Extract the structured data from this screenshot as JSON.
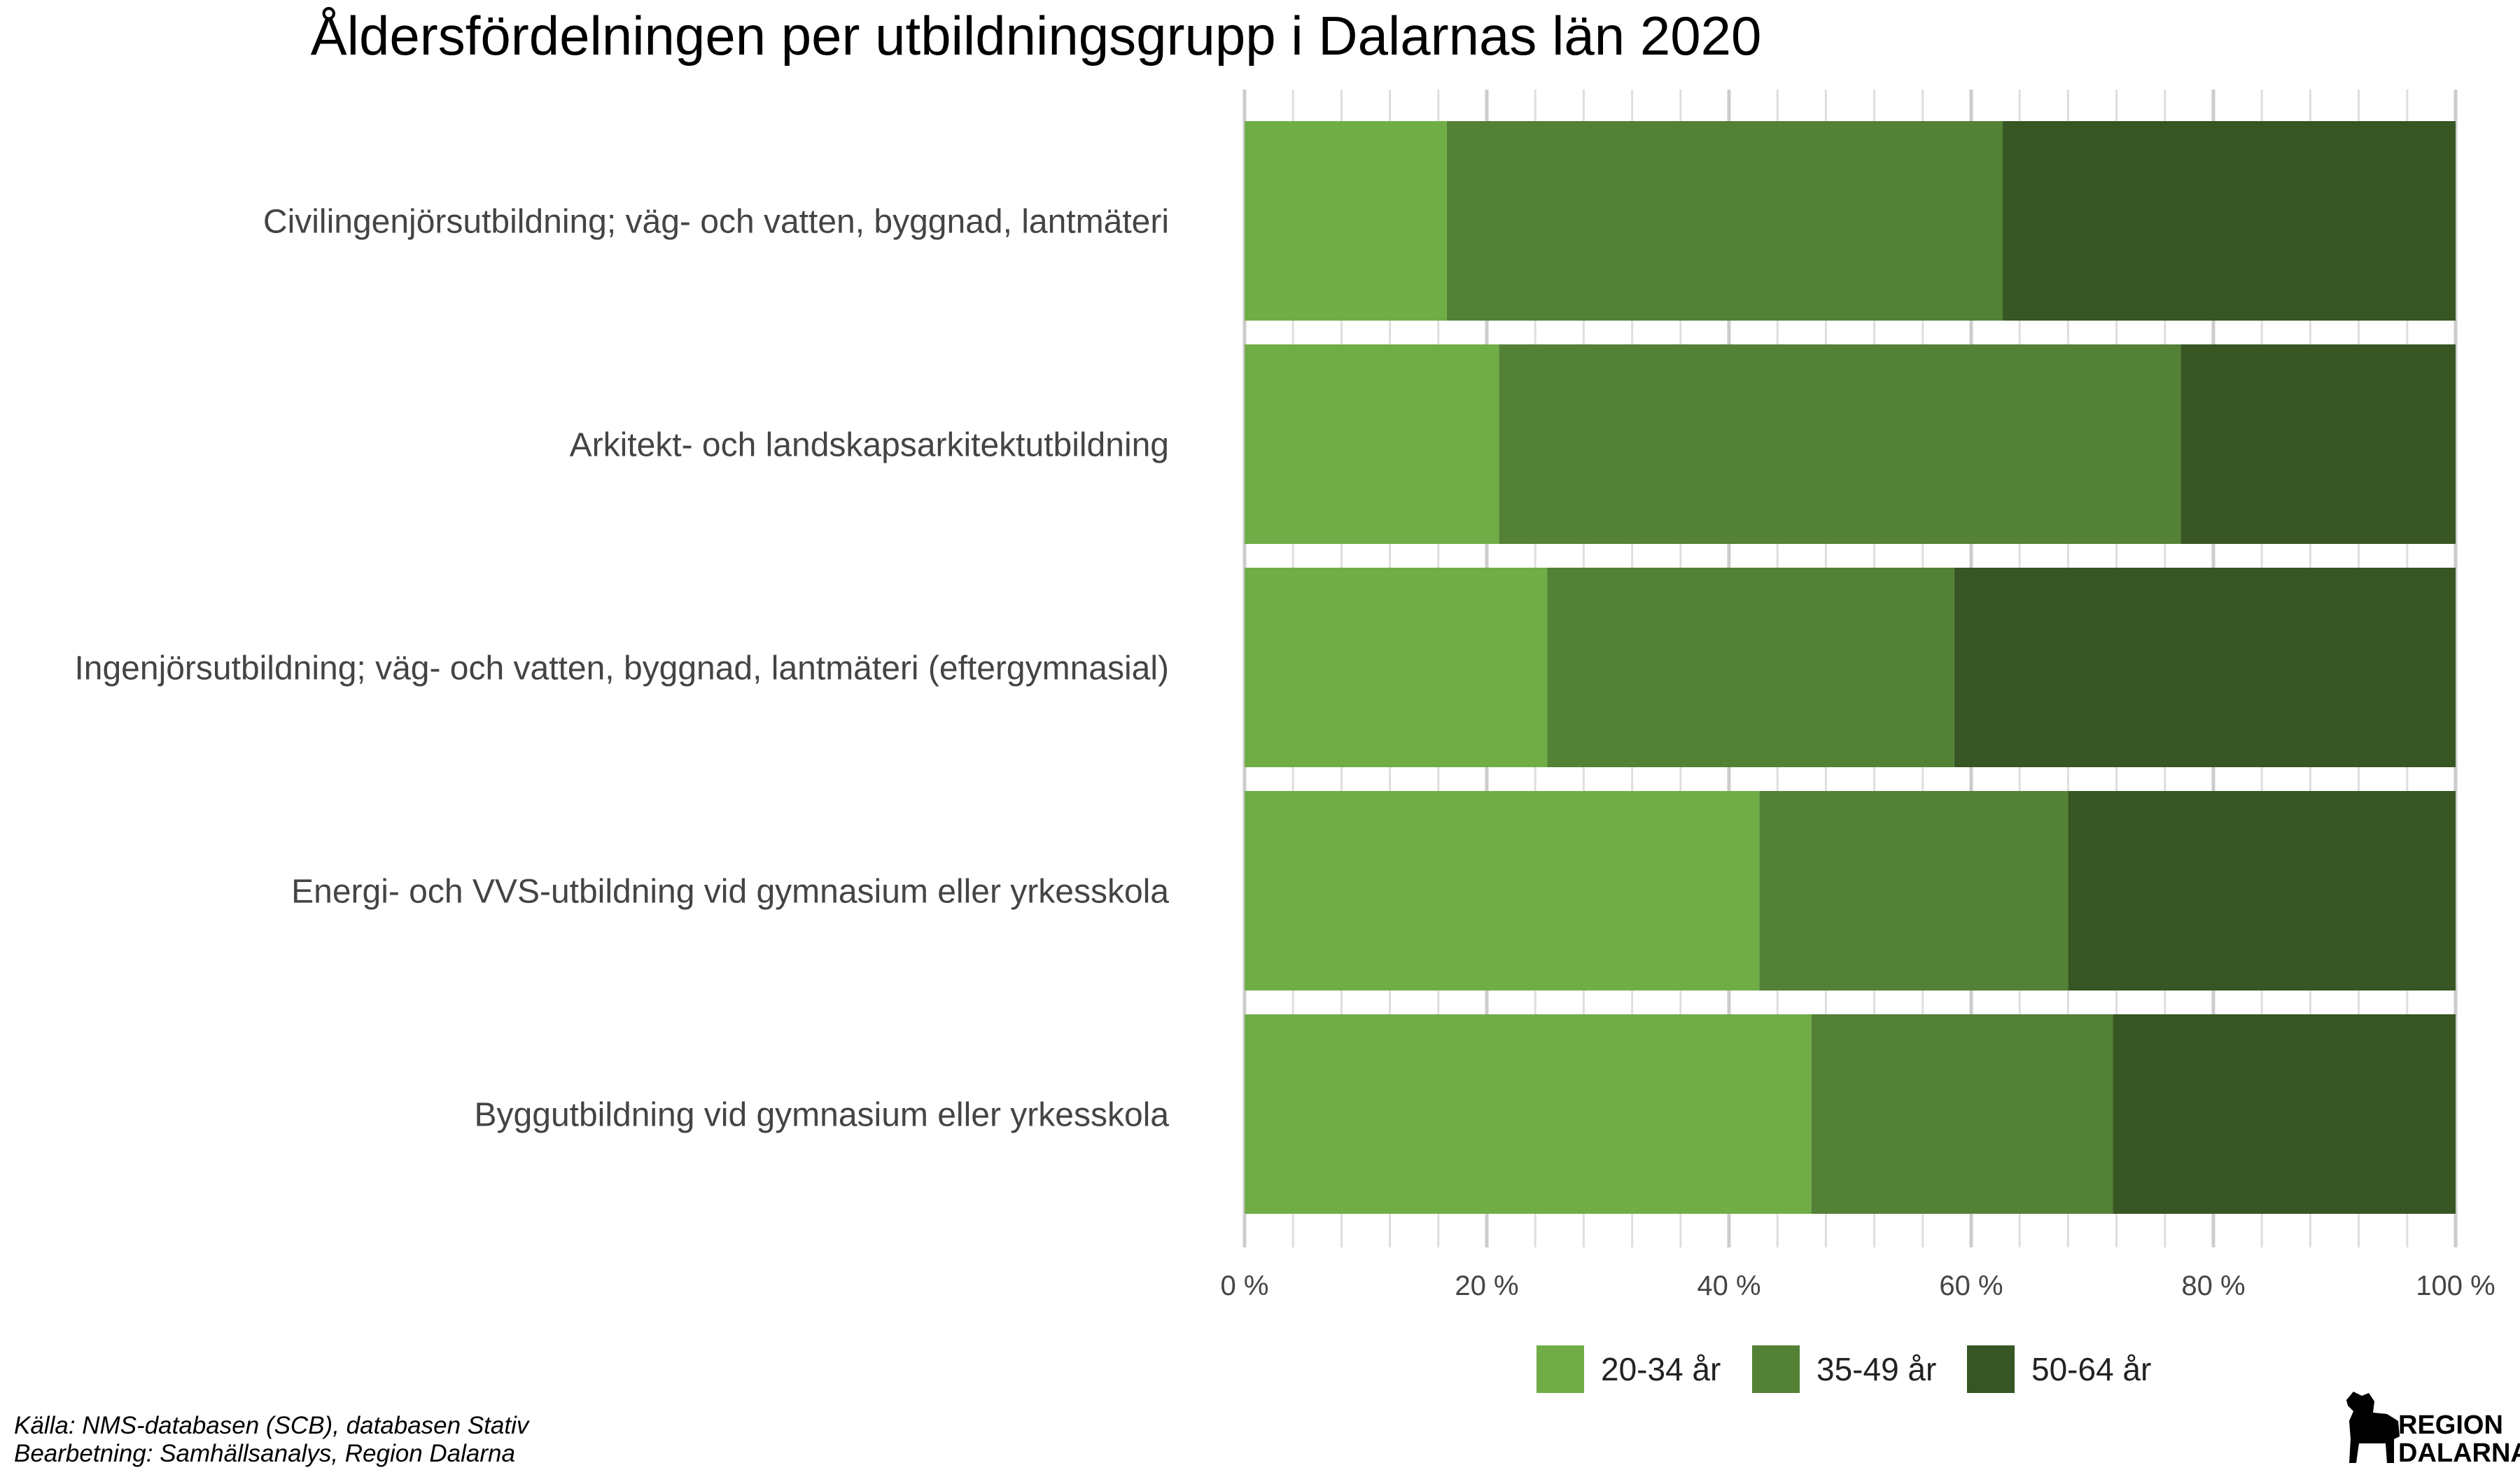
{
  "chart_data": {
    "type": "bar",
    "orientation": "horizontal",
    "stacked": true,
    "title": "Åldersfördelningen per utbildningsgrupp i  Dalarnas län 2020",
    "categories": [
      "Civilingenjörsutbildning; väg- och vatten, byggnad, lantmäteri",
      "Arkitekt- och landskapsarkitektutbildning",
      "Ingenjörsutbildning; väg- och vatten, byggnad, lantmäteri (eftergymnasial)",
      "Energi- och VVS-utbildning vid gymnasium eller yrkesskola",
      "Byggutbildning vid gymnasium eller yrkesskola"
    ],
    "series": [
      {
        "name": "20-34 år",
        "color": "#70ad47",
        "values": [
          16.7,
          21.0,
          25.0,
          42.5,
          46.8
        ]
      },
      {
        "name": "35-49 år",
        "color": "#538135",
        "values": [
          45.9,
          56.3,
          33.6,
          25.5,
          24.9
        ]
      },
      {
        "name": "50-64 år",
        "color": "#375623",
        "values": [
          37.4,
          22.7,
          41.4,
          32.0,
          28.3
        ]
      }
    ],
    "xlim": [
      0,
      100
    ],
    "x_ticks": [
      {
        "value": 0,
        "label": "0 %"
      },
      {
        "value": 20,
        "label": "20 %"
      },
      {
        "value": 40,
        "label": "40 %"
      },
      {
        "value": 60,
        "label": "60 %"
      },
      {
        "value": 80,
        "label": "80 %"
      },
      {
        "value": 100,
        "label": "100 %"
      }
    ],
    "minor_grid_step": 4,
    "grid": true,
    "legend_position": "bottom"
  },
  "footer": {
    "source": "Källa: NMS-databasen (SCB), databasen Stativ",
    "processing": "Bearbetning: Samhällsanalys, Region Dalarna"
  },
  "logo": {
    "line1": "REGION",
    "line2": "DALARNA",
    "icon": "dalahorse-icon"
  }
}
